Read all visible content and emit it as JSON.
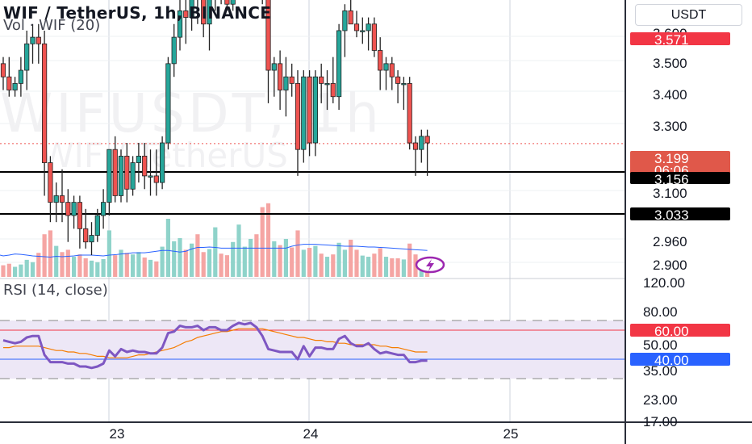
{
  "header": {
    "title": "WIF / TetherUS, 1h, BINANCE",
    "volume_indicator": "Vol · WIF (20)",
    "rsi_indicator": "RSI (14, close)",
    "currency_button": "USDT"
  },
  "watermark": {
    "line1": "WIFUSDT, 1h",
    "line2": "WIF / TetherUS"
  },
  "colors": {
    "up": "#26a69a",
    "down": "#ef5350",
    "candle_border": "#222222",
    "volume_up": "#8fd3ca",
    "volume_down": "#f5a5a3",
    "volume_ma": "#2962ff",
    "rsi_line": "#7e57c2",
    "rsi_ma": "#f57c00",
    "rsi_band": "#ede7f6",
    "level_red": "#f23645",
    "level_black": "#000000",
    "label_blue": "#2962ff"
  },
  "chart_data": [
    {
      "type": "candlestick",
      "title": "WIF / TetherUS, 1h, BINANCE",
      "x_ticks": [
        "23",
        "24",
        "25"
      ],
      "y_ticks": [
        "3.600",
        "3.500",
        "3.400",
        "3.300",
        "3.100",
        "2.960",
        "2.900"
      ],
      "grid": true,
      "ohlc": [
        [
          3.32,
          3.33,
          3.28,
          3.3
        ],
        [
          3.3,
          3.33,
          3.27,
          3.28
        ],
        [
          3.28,
          3.3,
          3.27,
          3.29
        ],
        [
          3.29,
          3.33,
          3.27,
          3.31
        ],
        [
          3.31,
          3.37,
          3.28,
          3.35
        ],
        [
          3.35,
          3.38,
          3.32,
          3.36
        ],
        [
          3.36,
          3.38,
          3.32,
          3.35
        ],
        [
          3.35,
          3.37,
          3.12,
          3.17
        ],
        [
          3.17,
          3.18,
          3.08,
          3.11
        ],
        [
          3.11,
          3.14,
          3.08,
          3.12
        ],
        [
          3.12,
          3.16,
          3.08,
          3.11
        ],
        [
          3.11,
          3.13,
          3.05,
          3.09
        ],
        [
          3.09,
          3.12,
          3.07,
          3.11
        ],
        [
          3.11,
          3.12,
          3.04,
          3.07
        ],
        [
          3.07,
          3.1,
          3.04,
          3.05
        ],
        [
          3.05,
          3.08,
          3.03,
          3.06
        ],
        [
          3.06,
          3.1,
          3.05,
          3.09
        ],
        [
          3.09,
          3.13,
          3.07,
          3.11
        ],
        [
          3.11,
          3.19,
          3.09,
          3.19
        ],
        [
          3.19,
          3.21,
          3.11,
          3.12
        ],
        [
          3.12,
          3.19,
          3.11,
          3.18
        ],
        [
          3.18,
          3.2,
          3.11,
          3.13
        ],
        [
          3.13,
          3.18,
          3.12,
          3.17
        ],
        [
          3.17,
          3.2,
          3.14,
          3.18
        ],
        [
          3.18,
          3.2,
          3.13,
          3.15
        ],
        [
          3.15,
          3.19,
          3.12,
          3.15
        ],
        [
          3.15,
          3.19,
          3.12,
          3.14
        ],
        [
          3.14,
          3.21,
          3.13,
          3.2
        ],
        [
          3.2,
          3.33,
          3.19,
          3.32
        ],
        [
          3.32,
          3.38,
          3.3,
          3.36
        ],
        [
          3.36,
          3.44,
          3.34,
          3.4
        ],
        [
          3.4,
          3.43,
          3.35,
          3.39
        ],
        [
          3.39,
          3.44,
          3.37,
          3.43
        ],
        [
          3.43,
          3.45,
          3.38,
          3.42
        ],
        [
          3.42,
          3.44,
          3.36,
          3.38
        ],
        [
          3.38,
          3.43,
          3.34,
          3.42
        ],
        [
          3.42,
          3.49,
          3.4,
          3.45
        ],
        [
          3.45,
          3.46,
          3.41,
          3.42
        ],
        [
          3.42,
          3.45,
          3.4,
          3.41
        ],
        [
          3.41,
          3.52,
          3.4,
          3.51
        ],
        [
          3.51,
          3.57,
          3.5,
          3.55
        ],
        [
          3.55,
          3.57,
          3.5,
          3.55
        ],
        [
          3.55,
          3.57,
          3.52,
          3.56
        ],
        [
          3.56,
          3.57,
          3.49,
          3.5
        ],
        [
          3.5,
          3.52,
          3.41,
          3.44
        ],
        [
          3.44,
          3.45,
          3.26,
          3.31
        ],
        [
          3.31,
          3.33,
          3.27,
          3.32
        ],
        [
          3.32,
          3.34,
          3.25,
          3.28
        ],
        [
          3.28,
          3.33,
          3.24,
          3.3
        ],
        [
          3.3,
          3.32,
          3.27,
          3.29
        ],
        [
          3.29,
          3.31,
          3.15,
          3.19
        ],
        [
          3.19,
          3.31,
          3.17,
          3.3
        ],
        [
          3.3,
          3.31,
          3.18,
          3.2
        ],
        [
          3.2,
          3.31,
          3.18,
          3.3
        ],
        [
          3.3,
          3.32,
          3.26,
          3.29
        ],
        [
          3.29,
          3.31,
          3.25,
          3.29
        ],
        [
          3.29,
          3.33,
          3.26,
          3.27
        ],
        [
          3.27,
          3.38,
          3.25,
          3.37
        ],
        [
          3.37,
          3.41,
          3.33,
          3.4
        ],
        [
          3.4,
          3.47,
          3.38,
          3.38
        ],
        [
          3.38,
          3.4,
          3.36,
          3.37
        ],
        [
          3.37,
          3.39,
          3.35,
          3.37
        ],
        [
          3.37,
          3.39,
          3.34,
          3.38
        ],
        [
          3.38,
          3.39,
          3.33,
          3.34
        ],
        [
          3.34,
          3.36,
          3.28,
          3.31
        ],
        [
          3.31,
          3.33,
          3.28,
          3.32
        ],
        [
          3.32,
          3.33,
          3.28,
          3.3
        ],
        [
          3.3,
          3.31,
          3.26,
          3.29
        ],
        [
          3.29,
          3.3,
          3.25,
          3.29
        ],
        [
          3.29,
          3.3,
          3.19,
          3.2
        ],
        [
          3.2,
          3.21,
          3.15,
          3.19
        ],
        [
          3.19,
          3.22,
          3.17,
          3.21
        ],
        [
          3.21,
          3.22,
          3.15,
          3.2
        ]
      ],
      "volume": [
        30,
        34,
        26,
        32,
        44,
        38,
        62,
        110,
        120,
        80,
        64,
        70,
        52,
        58,
        48,
        42,
        38,
        46,
        120,
        56,
        70,
        62,
        58,
        64,
        50,
        44,
        40,
        78,
        150,
        92,
        100,
        70,
        86,
        110,
        64,
        72,
        128,
        60,
        56,
        90,
        135,
        78,
        98,
        110,
        180,
        190,
        92,
        82,
        98,
        76,
        120,
        70,
        75,
        80,
        60,
        52,
        58,
        88,
        70,
        96,
        70,
        55,
        52,
        60,
        74,
        52,
        48,
        48,
        45,
        86,
        58,
        36,
        32
      ],
      "volume_ma": [
        50,
        52,
        55,
        54,
        52,
        50,
        49,
        48,
        47,
        49,
        48,
        49,
        50,
        52,
        52,
        52,
        51,
        50,
        52,
        53,
        55,
        56,
        58,
        58,
        58,
        60,
        62,
        64,
        64,
        62,
        60,
        62,
        68,
        72,
        72,
        73,
        72,
        70,
        70,
        70,
        70,
        70,
        70,
        70,
        70,
        70,
        70,
        70,
        70,
        75,
        78,
        80,
        80,
        80,
        79,
        78,
        77,
        76,
        75,
        75,
        75,
        74,
        73,
        73,
        72,
        71,
        70,
        69,
        68,
        67,
        66,
        65,
        64
      ],
      "levels": {
        "high": "3.571",
        "last": "3.199",
        "countdown": "06:06",
        "support_1": "3.156",
        "support_2": "3.033"
      }
    },
    {
      "type": "line",
      "title": "RSI (14, close)",
      "y_ticks": [
        "120.00",
        "80.00",
        "50.00",
        "35.00",
        "23.00",
        "17.00"
      ],
      "band": [
        40,
        60
      ],
      "rsi": [
        53,
        52,
        51,
        52,
        55,
        56,
        56,
        43,
        38,
        38,
        38,
        37,
        37,
        35,
        35,
        34,
        35,
        37,
        46,
        42,
        47,
        45,
        46,
        45,
        45,
        44,
        44,
        48,
        58,
        59,
        63,
        62,
        62,
        63,
        60,
        62,
        62,
        60,
        60,
        63,
        65,
        64,
        65,
        62,
        56,
        47,
        46,
        45,
        45,
        45,
        40,
        49,
        42,
        48,
        48,
        47,
        47,
        54,
        56,
        51,
        49,
        49,
        51,
        47,
        44,
        45,
        44,
        43,
        43,
        38,
        38,
        39,
        39
      ],
      "rsi_ma": [
        48,
        48,
        49,
        49,
        49,
        49,
        49,
        48,
        47,
        46,
        46,
        45,
        45,
        44,
        44,
        43,
        42,
        42,
        41,
        41,
        41,
        41,
        42,
        43,
        43,
        44,
        45,
        46,
        47,
        48,
        50,
        52,
        53,
        55,
        56,
        57,
        58,
        59,
        59,
        60,
        61,
        61,
        61,
        61,
        61,
        60,
        59,
        58,
        57,
        56,
        55,
        55,
        54,
        53,
        53,
        52,
        52,
        51,
        51,
        50,
        50,
        50,
        50,
        50,
        49,
        49,
        48,
        48,
        47,
        46,
        45,
        45,
        45
      ],
      "levels": {
        "upper": "60.00",
        "lower": "40.00"
      }
    }
  ]
}
